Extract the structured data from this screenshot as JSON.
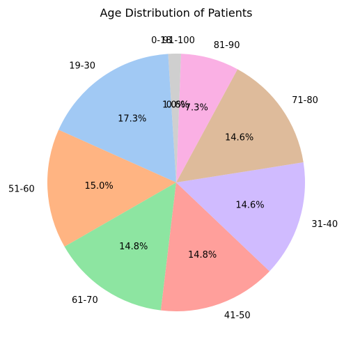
{
  "chart_data": {
    "type": "pie",
    "title": "Age Distribution of Patients",
    "start_angle_deg": 90,
    "direction": "counterclockwise",
    "categories": [
      "0-18",
      "19-30",
      "51-60",
      "61-70",
      "41-50",
      "31-40",
      "71-80",
      "81-90",
      "91-100"
    ],
    "values": [
      1.0,
      17.3,
      15.0,
      14.8,
      14.8,
      14.6,
      14.6,
      7.3,
      0.6
    ],
    "value_labels": [
      "1.0%",
      "17.3%",
      "15.0%",
      "14.8%",
      "14.8%",
      "14.6%",
      "14.6%",
      "7.3%",
      "0.6%"
    ],
    "colors": [
      "#cfcfcf",
      "#a1c9f4",
      "#ffb482",
      "#8de5a1",
      "#ff9f9b",
      "#d0bbff",
      "#debb9b",
      "#fab0e4",
      "#cfcfcf"
    ]
  }
}
